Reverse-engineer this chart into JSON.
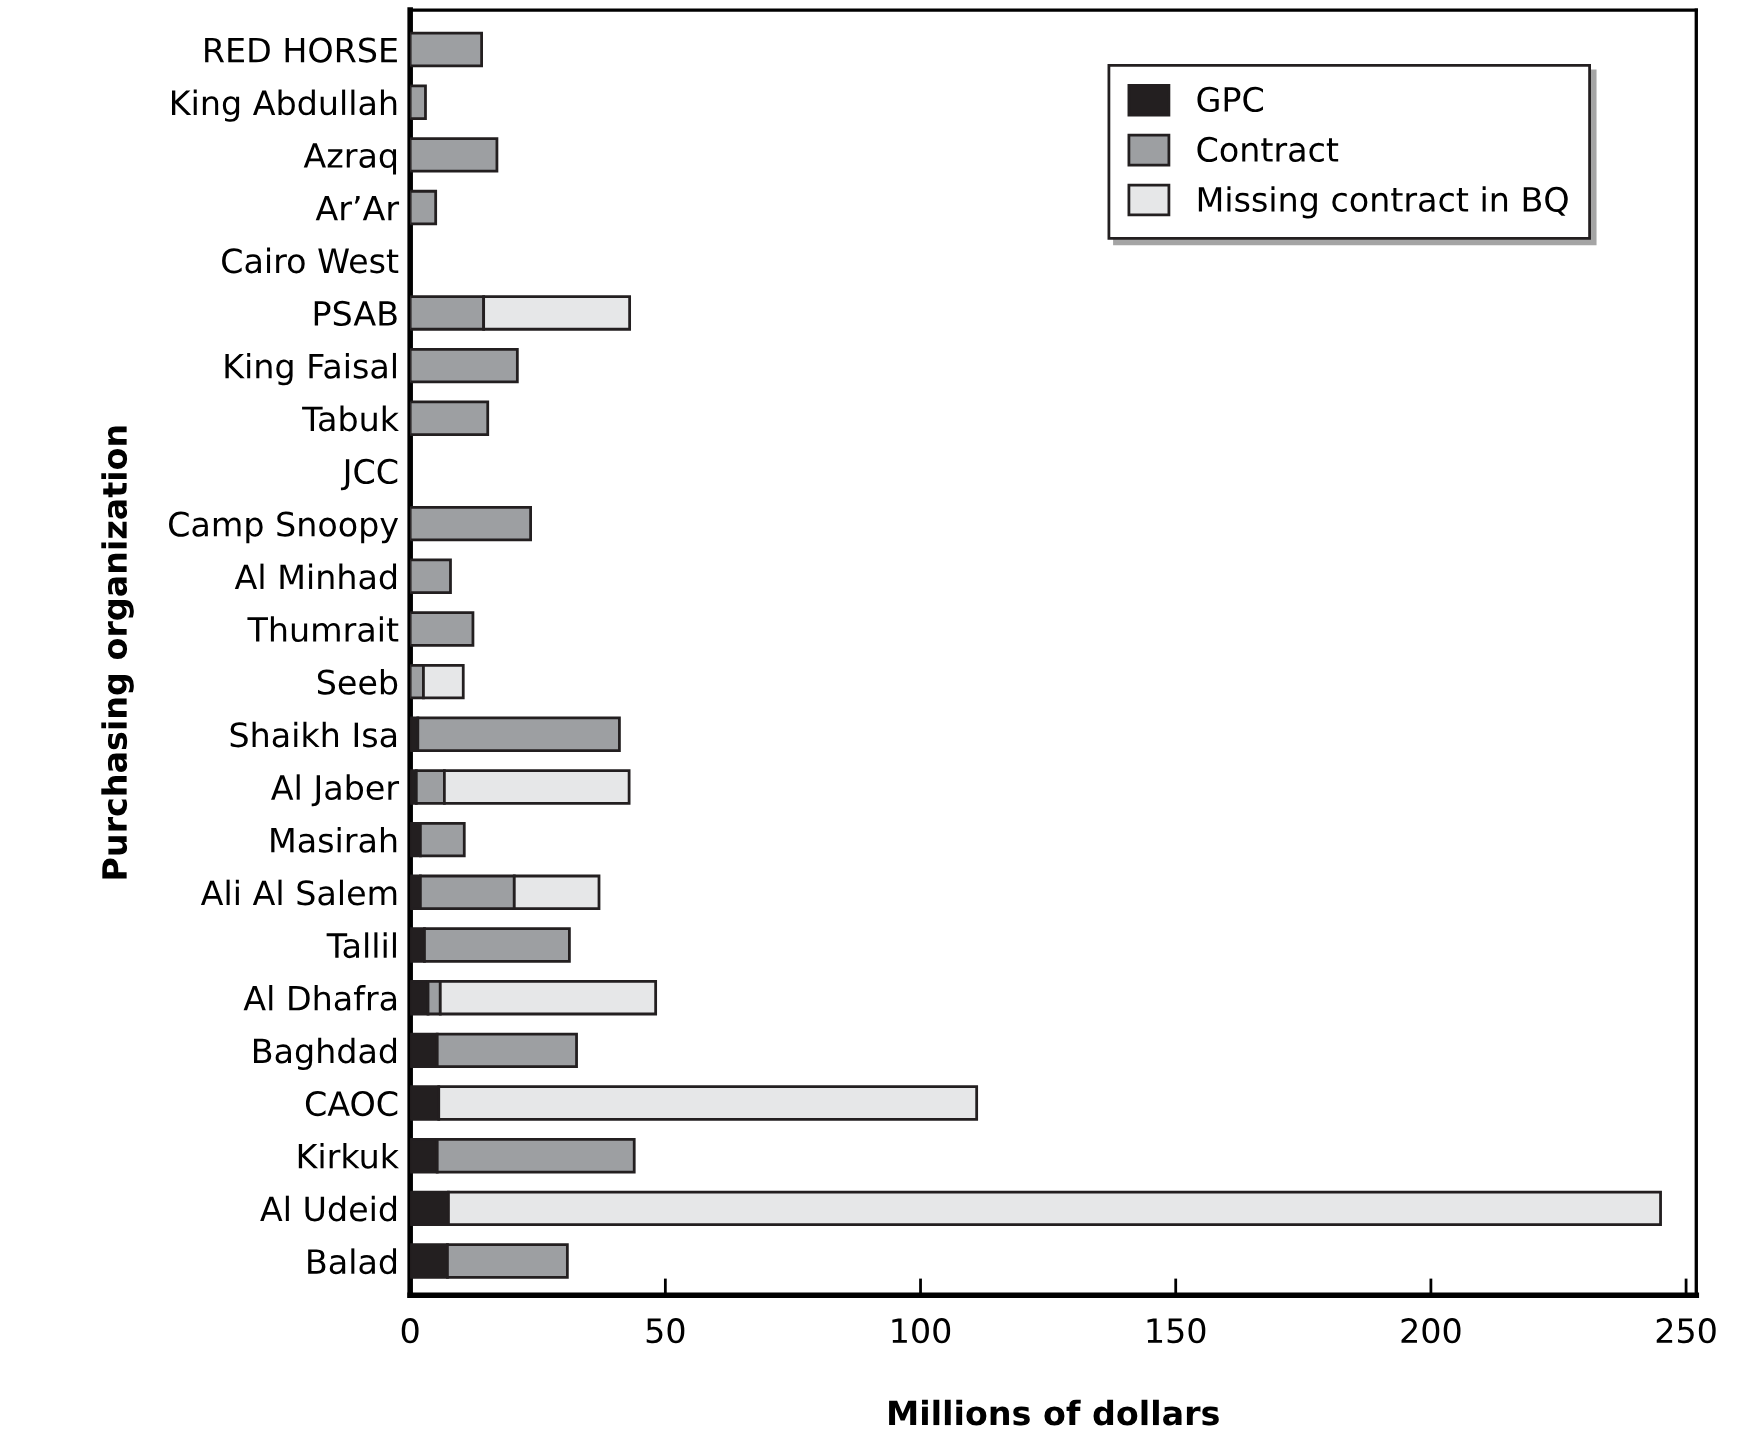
{
  "chart_data": {
    "type": "bar",
    "orientation": "horizontal",
    "stacked": true,
    "xlabel": "Millions of dollars",
    "ylabel": "Purchasing organization",
    "categories": [
      "RED HORSE",
      "King Abdullah",
      "Azraq",
      "Ar’Ar",
      "Cairo West",
      "PSAB",
      "King Faisal",
      "Tabuk",
      "JCC",
      "Camp Snoopy",
      "Al Minhad",
      "Thumrait",
      "Seeb",
      "Shaikh Isa",
      "Al Jaber",
      "Masirah",
      "Ali Al Salem",
      "Tallil",
      "Al Dhafra",
      "Baghdad",
      "CAOC",
      "Kirkuk",
      "Al Udeid",
      "Balad"
    ],
    "series": [
      {
        "name": "GPC",
        "color": "#231f20",
        "values": [
          0,
          0,
          0,
          0,
          0,
          0,
          0,
          0,
          0,
          0,
          0,
          0,
          0,
          1.5,
          1.2,
          2,
          2,
          2.8,
          3.5,
          5.3,
          5.6,
          5.3,
          7.5,
          7.3
        ]
      },
      {
        "name": "Contract",
        "color": "#9d9fa2",
        "values": [
          14,
          3,
          17,
          5,
          0,
          14.4,
          21,
          15.2,
          0,
          23.6,
          7.9,
          12.3,
          2.6,
          39.5,
          5.5,
          8.6,
          18.4,
          28.4,
          2.4,
          27.3,
          0,
          38.6,
          0,
          23.5
        ]
      },
      {
        "name": "Missing contract in BQ",
        "color": "#e6e7e8",
        "values": [
          0,
          0,
          0,
          0,
          0,
          28.6,
          0,
          0,
          0,
          0,
          0,
          0,
          7.8,
          0,
          36.2,
          0,
          16.6,
          0,
          42.2,
          0,
          105.4,
          0,
          237.5,
          0
        ]
      }
    ],
    "xlim": [
      0,
      252
    ],
    "xticks": [
      0,
      50,
      100,
      150,
      200,
      250
    ],
    "grid": false,
    "legend": "top right"
  }
}
